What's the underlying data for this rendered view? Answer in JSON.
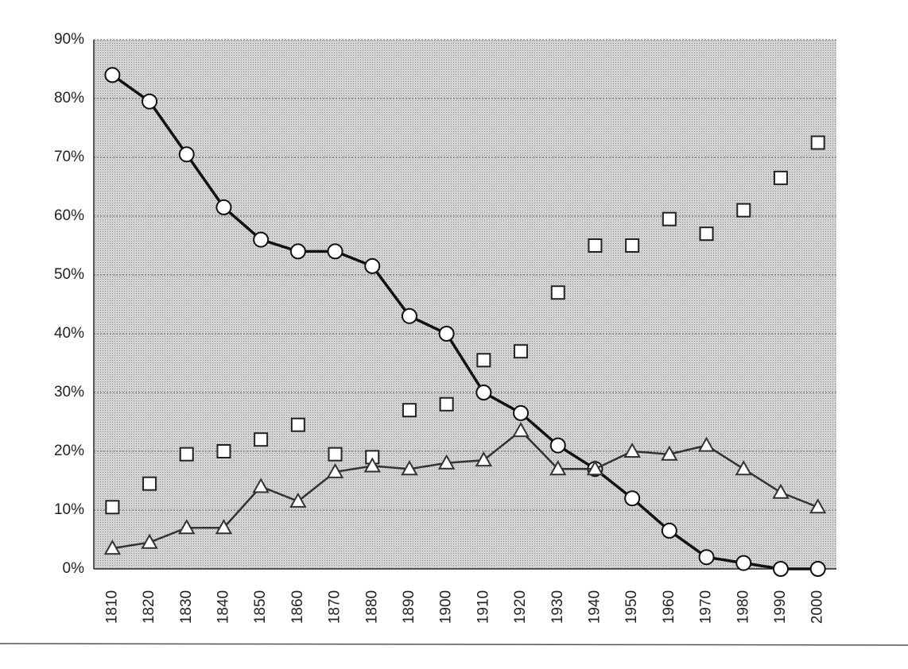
{
  "chart_data": {
    "type": "line",
    "categories": [
      "1810",
      "1820",
      "1830",
      "1840",
      "1850",
      "1860",
      "1870",
      "1880",
      "1890",
      "1900",
      "1910",
      "1920",
      "1930",
      "1940",
      "1950",
      "1960",
      "1970",
      "1980",
      "1990",
      "2000"
    ],
    "series": [
      {
        "color": "#111111",
        "marker": "circle",
        "line": true,
        "values": [
          84,
          79.5,
          70.5,
          61.5,
          56,
          54,
          54,
          51.5,
          43,
          40,
          30,
          26.5,
          21,
          17,
          12,
          6.5,
          2,
          1,
          0,
          0
        ]
      },
      {
        "color": "#222222",
        "marker": "square",
        "line": false,
        "values": [
          10.5,
          14.5,
          19.5,
          20,
          22,
          24.5,
          19.5,
          19,
          27,
          28,
          35.5,
          37,
          47,
          55,
          55,
          59.5,
          57,
          61,
          66.5,
          72.5
        ]
      },
      {
        "color": "#333333",
        "marker": "triangle",
        "line": true,
        "values": [
          3.5,
          4.5,
          7,
          7,
          14,
          11.5,
          16.5,
          17.5,
          17,
          18,
          18.5,
          23.5,
          17,
          17,
          20,
          19.5,
          21,
          17,
          13,
          10.5
        ]
      }
    ],
    "ylim": [
      0,
      90
    ],
    "yticks": [
      {
        "value": 0,
        "label": "0%"
      },
      {
        "value": 10,
        "label": "10%"
      },
      {
        "value": 20,
        "label": "20%"
      },
      {
        "value": 30,
        "label": "30%"
      },
      {
        "value": 40,
        "label": "40%"
      },
      {
        "value": 50,
        "label": "50%"
      },
      {
        "value": 60,
        "label": "60%"
      },
      {
        "value": 70,
        "label": "70%"
      },
      {
        "value": 80,
        "label": "80%"
      },
      {
        "value": 90,
        "label": "90%"
      }
    ],
    "grid": true
  }
}
